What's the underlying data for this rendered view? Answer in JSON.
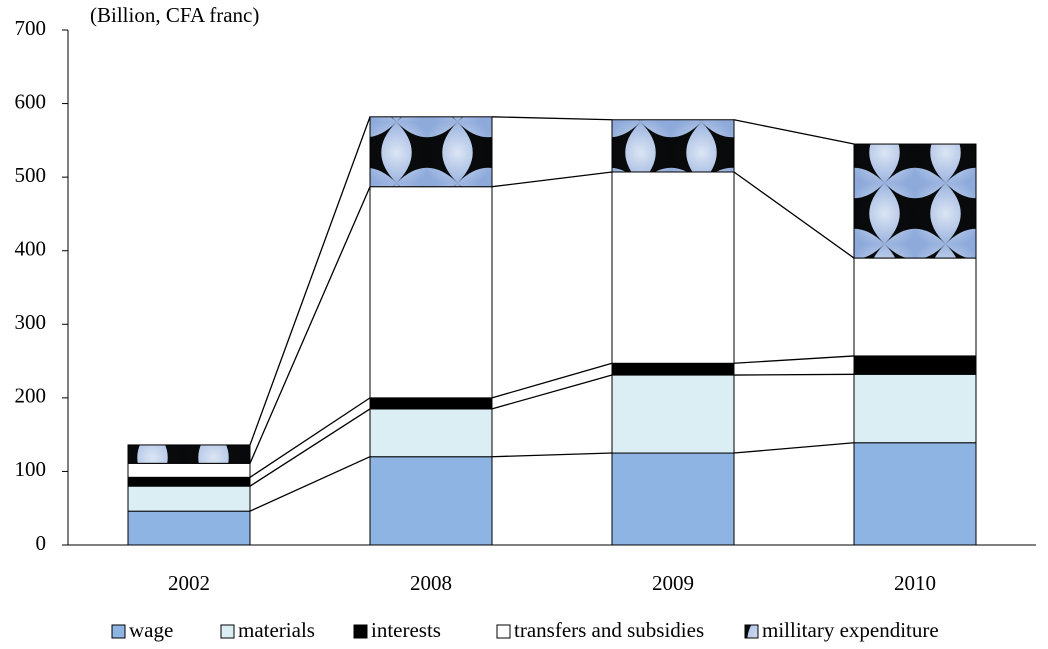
{
  "chart_data": {
    "type": "bar",
    "stacked": true,
    "y_label": "(Billion, CFA franc)",
    "categories": [
      "2002",
      "2008",
      "2009",
      "2010"
    ],
    "ylim": [
      0,
      700
    ],
    "yticks": [
      0,
      100,
      200,
      300,
      400,
      500,
      600,
      700
    ],
    "series": [
      {
        "name": "wage",
        "color": "#8eb4e3",
        "values": [
          46,
          120,
          125,
          139
        ]
      },
      {
        "name": "materials",
        "color": "#daeef3",
        "values": [
          34,
          65,
          106,
          93
        ]
      },
      {
        "name": "interests",
        "color": "#000000",
        "values": [
          12,
          15,
          16,
          25
        ]
      },
      {
        "name": "transfers and subsidies",
        "color": "#ffffff",
        "values": [
          19,
          287,
          260,
          133
        ]
      },
      {
        "name": "millitary expenditure",
        "color": "#b8cce4",
        "pattern": true,
        "values": [
          25,
          95,
          71,
          155
        ]
      }
    ]
  }
}
